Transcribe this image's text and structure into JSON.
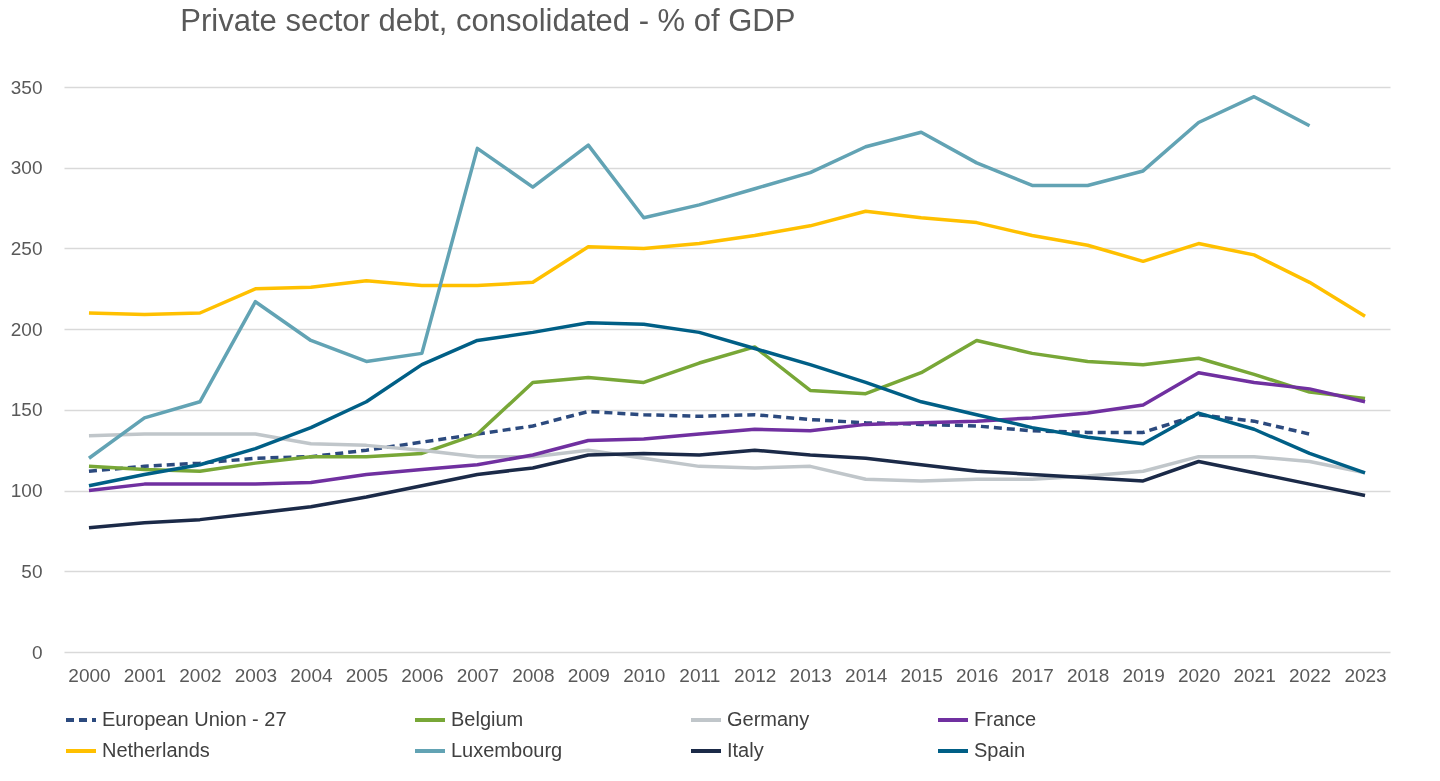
{
  "chart_data": {
    "type": "line",
    "title": "Private sector debt, consolidated - % of GDP",
    "categories": [
      "2000",
      "2001",
      "2002",
      "2003",
      "2004",
      "2005",
      "2006",
      "2007",
      "2008",
      "2009",
      "2010",
      "2011",
      "2012",
      "2013",
      "2014",
      "2015",
      "2016",
      "2017",
      "2018",
      "2019",
      "2020",
      "2021",
      "2022",
      "2023"
    ],
    "ylim": [
      0,
      350
    ],
    "yticks": [
      0,
      50,
      100,
      150,
      200,
      250,
      300,
      350
    ],
    "grid": "y",
    "legend": "bottom",
    "line_style": "solid",
    "series": [
      {
        "name": "European Union - 27",
        "color": "#2c4a7e",
        "line_style": "dashed",
        "values": [
          112,
          115,
          117,
          120,
          121,
          125,
          130,
          135,
          140,
          149,
          147,
          146,
          147,
          144,
          142,
          141,
          140,
          137,
          136,
          136,
          147,
          143,
          135,
          null
        ]
      },
      {
        "name": "Belgium",
        "color": "#78a737",
        "values": [
          115,
          113,
          112,
          117,
          121,
          121,
          123,
          135,
          167,
          170,
          167,
          179,
          189,
          162,
          160,
          173,
          193,
          185,
          180,
          178,
          182,
          172,
          161,
          157
        ]
      },
      {
        "name": "Germany",
        "color": "#c0c6ca",
        "values": [
          134,
          135,
          135,
          135,
          129,
          128,
          125,
          121,
          121,
          125,
          120,
          115,
          114,
          115,
          107,
          106,
          107,
          107,
          109,
          112,
          121,
          121,
          118,
          111
        ]
      },
      {
        "name": "France",
        "color": "#7030a0",
        "values": [
          100,
          104,
          104,
          104,
          105,
          110,
          113,
          116,
          122,
          131,
          132,
          135,
          138,
          137,
          141,
          142,
          143,
          145,
          148,
          153,
          173,
          167,
          163,
          155
        ]
      },
      {
        "name": "Netherlands",
        "color": "#ffc000",
        "values": [
          210,
          209,
          210,
          225,
          226,
          230,
          227,
          227,
          229,
          251,
          250,
          253,
          258,
          264,
          273,
          269,
          266,
          258,
          252,
          242,
          253,
          246,
          229,
          208
        ]
      },
      {
        "name": "Luxembourg",
        "color": "#62a3b4",
        "values": [
          120,
          145,
          155,
          217,
          193,
          180,
          185,
          312,
          288,
          314,
          269,
          277,
          287,
          297,
          313,
          322,
          303,
          289,
          289,
          298,
          328,
          344,
          326,
          null
        ]
      },
      {
        "name": "Italy",
        "color": "#1b2a48",
        "values": [
          77,
          80,
          82,
          86,
          90,
          96,
          103,
          110,
          114,
          122,
          123,
          122,
          125,
          122,
          120,
          116,
          112,
          110,
          108,
          106,
          118,
          111,
          104,
          97
        ]
      },
      {
        "name": "Spain",
        "color": "#005f86",
        "values": [
          103,
          110,
          116,
          126,
          139,
          155,
          178,
          193,
          198,
          204,
          203,
          198,
          188,
          178,
          167,
          155,
          147,
          139,
          133,
          129,
          148,
          138,
          123,
          111
        ]
      }
    ]
  }
}
